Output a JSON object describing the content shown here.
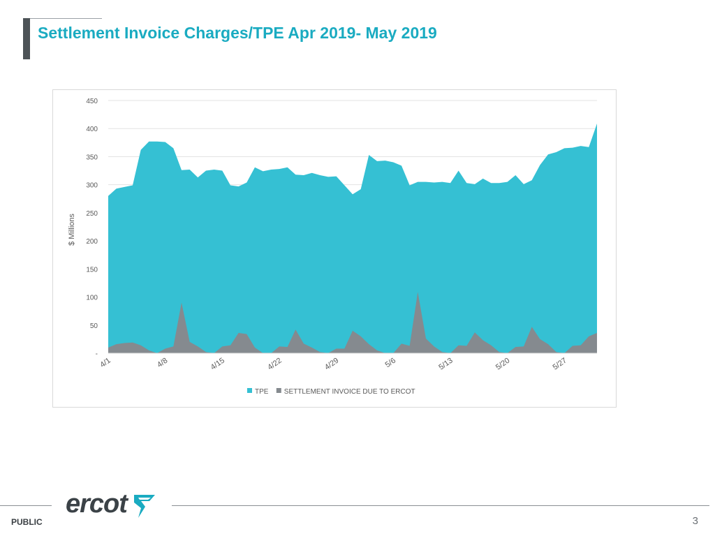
{
  "slide": {
    "title": "Settlement Invoice Charges/TPE Apr 2019- May 2019",
    "footer_label": "PUBLIC",
    "page_number": "3",
    "logo_text": "ercot"
  },
  "colors": {
    "title": "#1aabc1",
    "tpe": "#35c0d3",
    "settlement": "#858a8f",
    "axis_text": "#595959",
    "gridline": "#e3e3e3"
  },
  "chart_data": {
    "type": "area",
    "title": "",
    "xlabel": "",
    "ylabel": "$ Millions",
    "ylim": [
      0,
      450
    ],
    "yticks": [
      0,
      50,
      100,
      150,
      200,
      250,
      300,
      350,
      400,
      450
    ],
    "ytick_labels": [
      "-",
      "50",
      "100",
      "150",
      "200",
      "250",
      "300",
      "350",
      "400",
      "450"
    ],
    "grid": true,
    "legend_position": "bottom",
    "x": [
      "4/1",
      "4/2",
      "4/3",
      "4/4",
      "4/5",
      "4/6",
      "4/7",
      "4/8",
      "4/9",
      "4/10",
      "4/11",
      "4/12",
      "4/13",
      "4/14",
      "4/15",
      "4/16",
      "4/17",
      "4/18",
      "4/19",
      "4/20",
      "4/21",
      "4/22",
      "4/23",
      "4/24",
      "4/25",
      "4/26",
      "4/27",
      "4/28",
      "4/29",
      "4/30",
      "5/1",
      "5/2",
      "5/3",
      "5/4",
      "5/5",
      "5/6",
      "5/7",
      "5/8",
      "5/9",
      "5/10",
      "5/11",
      "5/12",
      "5/13",
      "5/14",
      "5/15",
      "5/16",
      "5/17",
      "5/18",
      "5/19",
      "5/20",
      "5/21",
      "5/22",
      "5/23",
      "5/24",
      "5/25",
      "5/26",
      "5/27",
      "5/28",
      "5/29",
      "5/30",
      "5/31"
    ],
    "x_tick_labels": [
      "4/1",
      "4/8",
      "4/15",
      "4/22",
      "4/29",
      "5/6",
      "5/13",
      "5/20",
      "5/27"
    ],
    "series": [
      {
        "name": "TPE",
        "values": [
          280,
          293,
          296,
          299,
          362,
          377,
          377,
          376,
          365,
          326,
          327,
          313,
          325,
          327,
          325,
          299,
          297,
          304,
          331,
          324,
          327,
          328,
          331,
          318,
          317,
          321,
          317,
          314,
          315,
          299,
          283,
          292,
          353,
          342,
          343,
          340,
          334,
          299,
          305,
          305,
          304,
          305,
          303,
          325,
          303,
          301,
          311,
          303,
          303,
          305,
          317,
          301,
          308,
          335,
          354,
          358,
          365,
          366,
          369,
          367,
          409
        ]
      },
      {
        "name": "SETTLEMENT INVOICE DUE TO ERCOT",
        "values": [
          10,
          16,
          18,
          19,
          14,
          5,
          0,
          8,
          12,
          90,
          20,
          12,
          2,
          0,
          12,
          14,
          36,
          34,
          10,
          0,
          0,
          12,
          11,
          42,
          17,
          10,
          2,
          0,
          8,
          8,
          40,
          30,
          16,
          5,
          0,
          0,
          17,
          13,
          109,
          26,
          12,
          2,
          0,
          14,
          13,
          37,
          23,
          14,
          2,
          0,
          11,
          12,
          47,
          25,
          16,
          2,
          0,
          13,
          14,
          30,
          36
        ]
      }
    ]
  }
}
